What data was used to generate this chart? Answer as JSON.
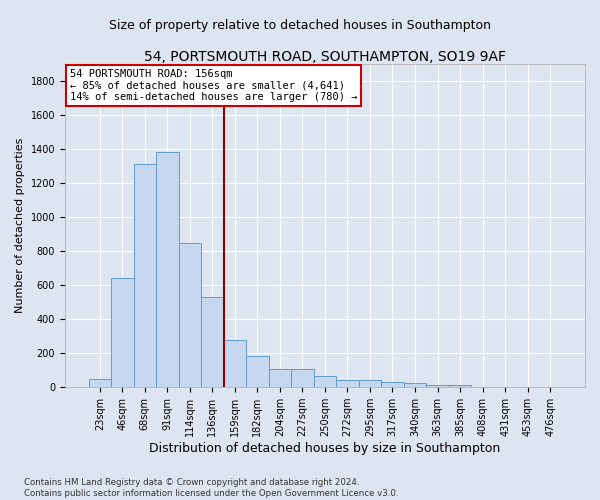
{
  "title": "54, PORTSMOUTH ROAD, SOUTHAMPTON, SO19 9AF",
  "subtitle": "Size of property relative to detached houses in Southampton",
  "xlabel": "Distribution of detached houses by size in Southampton",
  "ylabel": "Number of detached properties",
  "categories": [
    "23sqm",
    "46sqm",
    "68sqm",
    "91sqm",
    "114sqm",
    "136sqm",
    "159sqm",
    "182sqm",
    "204sqm",
    "227sqm",
    "250sqm",
    "272sqm",
    "295sqm",
    "317sqm",
    "340sqm",
    "363sqm",
    "385sqm",
    "408sqm",
    "431sqm",
    "453sqm",
    "476sqm"
  ],
  "values": [
    50,
    640,
    1310,
    1380,
    850,
    530,
    275,
    185,
    105,
    105,
    65,
    40,
    40,
    30,
    25,
    15,
    15,
    0,
    0,
    0,
    0
  ],
  "bar_color": "#c5d8f0",
  "bar_edge_color": "#6699cc",
  "vline_x": 5.5,
  "vline_color": "#8b0000",
  "annotation_text": "54 PORTSMOUTH ROAD: 156sqm\n← 85% of detached houses are smaller (4,641)\n14% of semi-detached houses are larger (780) →",
  "annotation_box_facecolor": "#ffffff",
  "annotation_box_edgecolor": "#cc0000",
  "ylim": [
    0,
    1900
  ],
  "yticks": [
    0,
    200,
    400,
    600,
    800,
    1000,
    1200,
    1400,
    1600,
    1800
  ],
  "bg_color": "#dde5f0",
  "plot_bg_color": "#dde5f0",
  "grid_color": "#ffffff",
  "title_fontsize": 10,
  "subtitle_fontsize": 9,
  "xlabel_fontsize": 9,
  "ylabel_fontsize": 8,
  "tick_fontsize": 7,
  "footer_text": "Contains HM Land Registry data © Crown copyright and database right 2024.\nContains public sector information licensed under the Open Government Licence v3.0."
}
